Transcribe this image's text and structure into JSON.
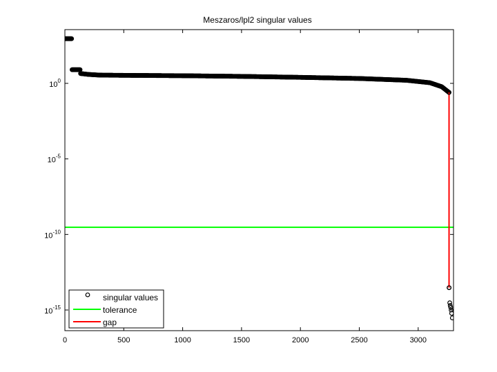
{
  "chart_data": {
    "type": "scatter",
    "title": "Meszaros/lpl2 singular values",
    "xlabel": "",
    "ylabel": "",
    "x_scale": "linear",
    "y_scale": "log",
    "xlim": [
      0,
      3300
    ],
    "ylim": [
      1e-16,
      10000.0
    ],
    "x_ticks": [
      0,
      500,
      1000,
      1500,
      2000,
      2500,
      3000
    ],
    "x_tick_labels": [
      "0",
      "500",
      "1000",
      "1500",
      "2000",
      "2500",
      "3000"
    ],
    "y_ticks": [
      {
        "value": 1,
        "base": "10",
        "exp": "0"
      },
      {
        "value": 1e-05,
        "base": "10",
        "exp": "-5"
      },
      {
        "value": 1e-10,
        "base": "10",
        "exp": "-10"
      },
      {
        "value": 1e-15,
        "base": "10",
        "exp": "-15"
      }
    ],
    "grid": false,
    "legend_position": "bottom-left",
    "legend": [
      {
        "label": "singular values",
        "marker": "circle",
        "color": "#000000"
      },
      {
        "label": "tolerance",
        "marker": "line",
        "color": "#00ff00"
      },
      {
        "label": "gap",
        "marker": "line",
        "color": "#ff0000"
      }
    ],
    "series": [
      {
        "name": "singular values",
        "style": "circle-markers",
        "color": "#000000",
        "profile": [
          {
            "x": 1,
            "y": 900
          },
          {
            "x": 60,
            "y": 900
          },
          {
            "x": 61,
            "y": 8
          },
          {
            "x": 130,
            "y": 8
          },
          {
            "x": 131,
            "y": 4.5
          },
          {
            "x": 200,
            "y": 3.9
          },
          {
            "x": 300,
            "y": 3.5
          },
          {
            "x": 500,
            "y": 3.4
          },
          {
            "x": 1000,
            "y": 3.2
          },
          {
            "x": 1500,
            "y": 2.9
          },
          {
            "x": 2000,
            "y": 2.5
          },
          {
            "x": 2500,
            "y": 2.1
          },
          {
            "x": 2900,
            "y": 1.6
          },
          {
            "x": 3100,
            "y": 1.1
          },
          {
            "x": 3200,
            "y": 0.6
          },
          {
            "x": 3262,
            "y": 0.25
          }
        ],
        "tail": [
          {
            "x": 3263,
            "y": 3e-14
          },
          {
            "x": 3268,
            "y": 3e-15
          },
          {
            "x": 3272,
            "y": 2e-15
          },
          {
            "x": 3276,
            "y": 1.5e-15
          },
          {
            "x": 3280,
            "y": 1e-15
          },
          {
            "x": 3284,
            "y": 6e-16
          },
          {
            "x": 3290,
            "y": 3e-16
          }
        ]
      },
      {
        "name": "tolerance",
        "style": "line",
        "color": "#00ff00",
        "y": 3e-10
      },
      {
        "name": "gap",
        "style": "line",
        "color": "#ff0000",
        "x": 3262,
        "y_from": 0.25,
        "y_to": 3e-14
      }
    ]
  }
}
